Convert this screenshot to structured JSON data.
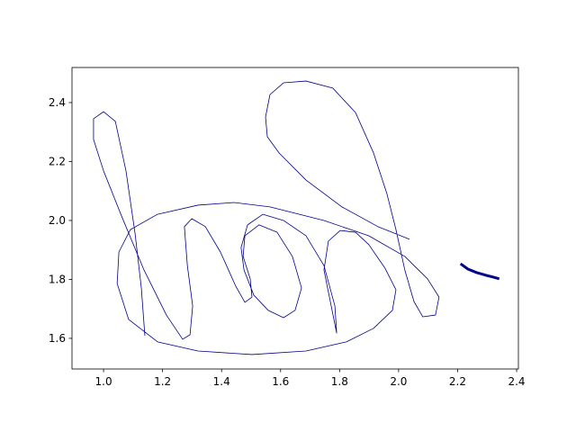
{
  "chart_data": {
    "type": "line",
    "xlim": [
      0.893,
      2.406
    ],
    "ylim": [
      1.496,
      2.519
    ],
    "xticks": [
      {
        "value": 1,
        "label": "1.0"
      },
      1.2,
      1.4,
      1.6,
      1.8,
      {
        "value": 2,
        "label": "2.0"
      },
      2.2,
      2.4
    ],
    "yticks": [
      1.6,
      1.8,
      {
        "value": 2,
        "label": "2.0"
      },
      2.2,
      2.4
    ],
    "series": [
      {
        "color": "#00008b",
        "linewidth": 0.8,
        "x": [
          1.14,
          1.128,
          1.107,
          1.076,
          1.04,
          1.0,
          0.966,
          0.966,
          1.0,
          1.061,
          1.137,
          1.213,
          1.268,
          1.293,
          1.302,
          1.284,
          1.274,
          1.299,
          1.345,
          1.396,
          1.448,
          1.479,
          1.503,
          1.497,
          1.473,
          1.479,
          1.527,
          1.588,
          1.64,
          1.671,
          1.649,
          1.61,
          1.558,
          1.509,
          1.476,
          1.466,
          1.488,
          1.54,
          1.61,
          1.686,
          1.747,
          1.784,
          1.79,
          1.747,
          1.762,
          1.802,
          1.854,
          1.899,
          1.954,
          1.991,
          1.979,
          1.915,
          1.823,
          1.686,
          1.503,
          1.32,
          1.183,
          1.085,
          1.046,
          1.052,
          1.091,
          1.183,
          1.32,
          1.442,
          1.564,
          1.747,
          1.899,
          2.021,
          2.098,
          2.137,
          2.125,
          2.082,
          2.052,
          2.021,
          1.991,
          1.96,
          1.915,
          1.854,
          1.777,
          1.686,
          1.61,
          1.564,
          1.549,
          1.555,
          1.595,
          1.686,
          1.808,
          1.93,
          2.037
        ],
        "values": [
          1.609,
          1.771,
          1.954,
          2.168,
          2.336,
          2.369,
          2.345,
          2.275,
          2.168,
          2.015,
          1.832,
          1.679,
          1.597,
          1.612,
          1.71,
          1.847,
          1.979,
          2.006,
          1.979,
          1.893,
          1.777,
          1.722,
          1.74,
          1.802,
          1.878,
          1.948,
          1.985,
          1.96,
          1.878,
          1.771,
          1.695,
          1.67,
          1.695,
          1.747,
          1.832,
          1.908,
          1.985,
          2.021,
          2.0,
          1.948,
          1.847,
          1.71,
          1.618,
          1.832,
          1.93,
          1.966,
          1.96,
          1.918,
          1.838,
          1.765,
          1.695,
          1.634,
          1.588,
          1.557,
          1.545,
          1.557,
          1.588,
          1.664,
          1.786,
          1.893,
          1.969,
          2.021,
          2.052,
          2.061,
          2.046,
          2.0,
          1.948,
          1.878,
          1.802,
          1.74,
          1.679,
          1.673,
          1.725,
          1.832,
          1.969,
          2.092,
          2.229,
          2.366,
          2.449,
          2.473,
          2.467,
          2.427,
          2.351,
          2.284,
          2.229,
          2.137,
          2.046,
          1.979,
          1.936
        ]
      },
      {
        "color": "#00008b",
        "linewidth": 3,
        "x": [
          2.21,
          2.235,
          2.265,
          2.296,
          2.32,
          2.341
        ],
        "values": [
          1.853,
          1.835,
          1.823,
          1.814,
          1.808,
          1.802
        ]
      }
    ]
  }
}
